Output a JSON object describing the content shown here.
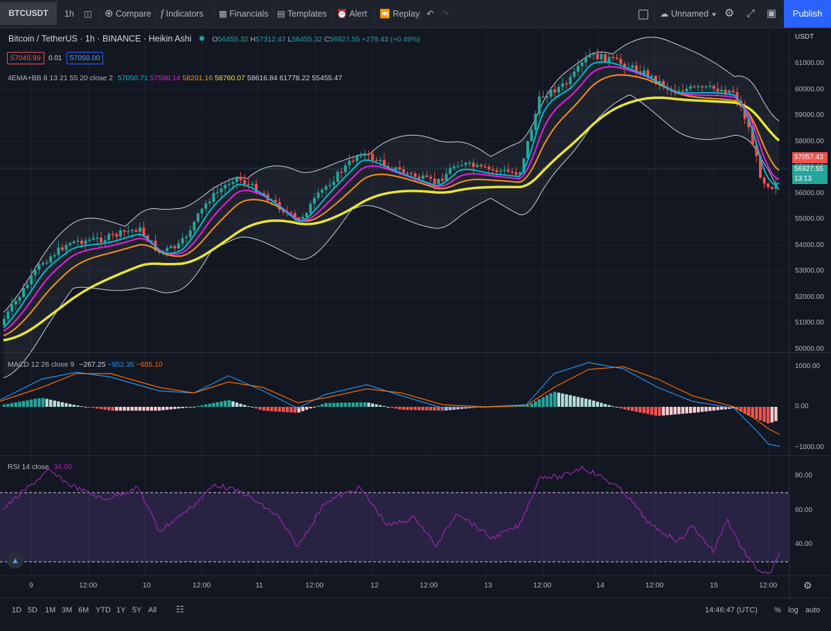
{
  "toolbar": {
    "symbol": "BTCUSDT",
    "interval": "1h",
    "compare": "Compare",
    "indicators": "Indicators",
    "financials": "Financials",
    "templates": "Templates",
    "alert": "Alert",
    "replay": "Replay",
    "layout_name": "Unnamed",
    "publish": "Publish"
  },
  "legend": {
    "symbol_title": "Bitcoin / TetherUS · 1h · BINANCE · Heikin Ashi",
    "o_label": "O",
    "o": "56455.32",
    "h_label": "H",
    "h": "57312.47",
    "l_label": "L",
    "l": "56455.32",
    "c_label": "C",
    "c": "56927.55",
    "change": "+279.43 (+0.49%)",
    "sell_price": "57049.99",
    "spread": "0.01",
    "buy_price": "57050.00",
    "ema_bb_title": "4EMA+BB 8 13 21 55 20 close 2",
    "ema_values": [
      "57050.71",
      "57590.14",
      "58201.16",
      "58760.07",
      "58616.84",
      "61778.22",
      "55455.47"
    ]
  },
  "price_axis": {
    "currency": "USDT",
    "labels": [
      "61000.00",
      "60000.00",
      "59000.00",
      "58000.00",
      "57000.00",
      "56000.00",
      "55000.00",
      "54000.00",
      "53000.00",
      "52000.00",
      "51000.00",
      "50000.00"
    ],
    "tag_upper": "57057.43",
    "tag_current": "56927.55",
    "countdown": "13:13"
  },
  "macd": {
    "title": "MACD 12 26 close 9",
    "values": [
      "−267.25",
      "−952.35",
      "−685.10"
    ],
    "axis": [
      "1000.00",
      "0.00",
      "−1000.00"
    ]
  },
  "rsi": {
    "title": "RSI 14 close",
    "value": "34.00",
    "axis": [
      "80.00",
      "60.00",
      "40.00"
    ]
  },
  "time_axis": [
    "9",
    "12:00",
    "10",
    "12:00",
    "11",
    "12:00",
    "12",
    "12:00",
    "13",
    "12:00",
    "14",
    "12:00",
    "15",
    "12:00"
  ],
  "ranges": [
    "1D",
    "5D",
    "1M",
    "3M",
    "6M",
    "YTD",
    "1Y",
    "5Y",
    "All"
  ],
  "status": {
    "clock": "14:46:47 (UTC)",
    "percent": "%",
    "log": "log",
    "auto": "auto"
  },
  "colors": {
    "up": "#26a69a",
    "down": "#ef5350",
    "ema8": "#00bcd4",
    "ema13": "#e91ee3",
    "ema21": "#f7931a",
    "ema55": "#e8e534",
    "macd": "#2196f3",
    "signal": "#ff6d00",
    "rsi": "#9c27b0"
  }
}
